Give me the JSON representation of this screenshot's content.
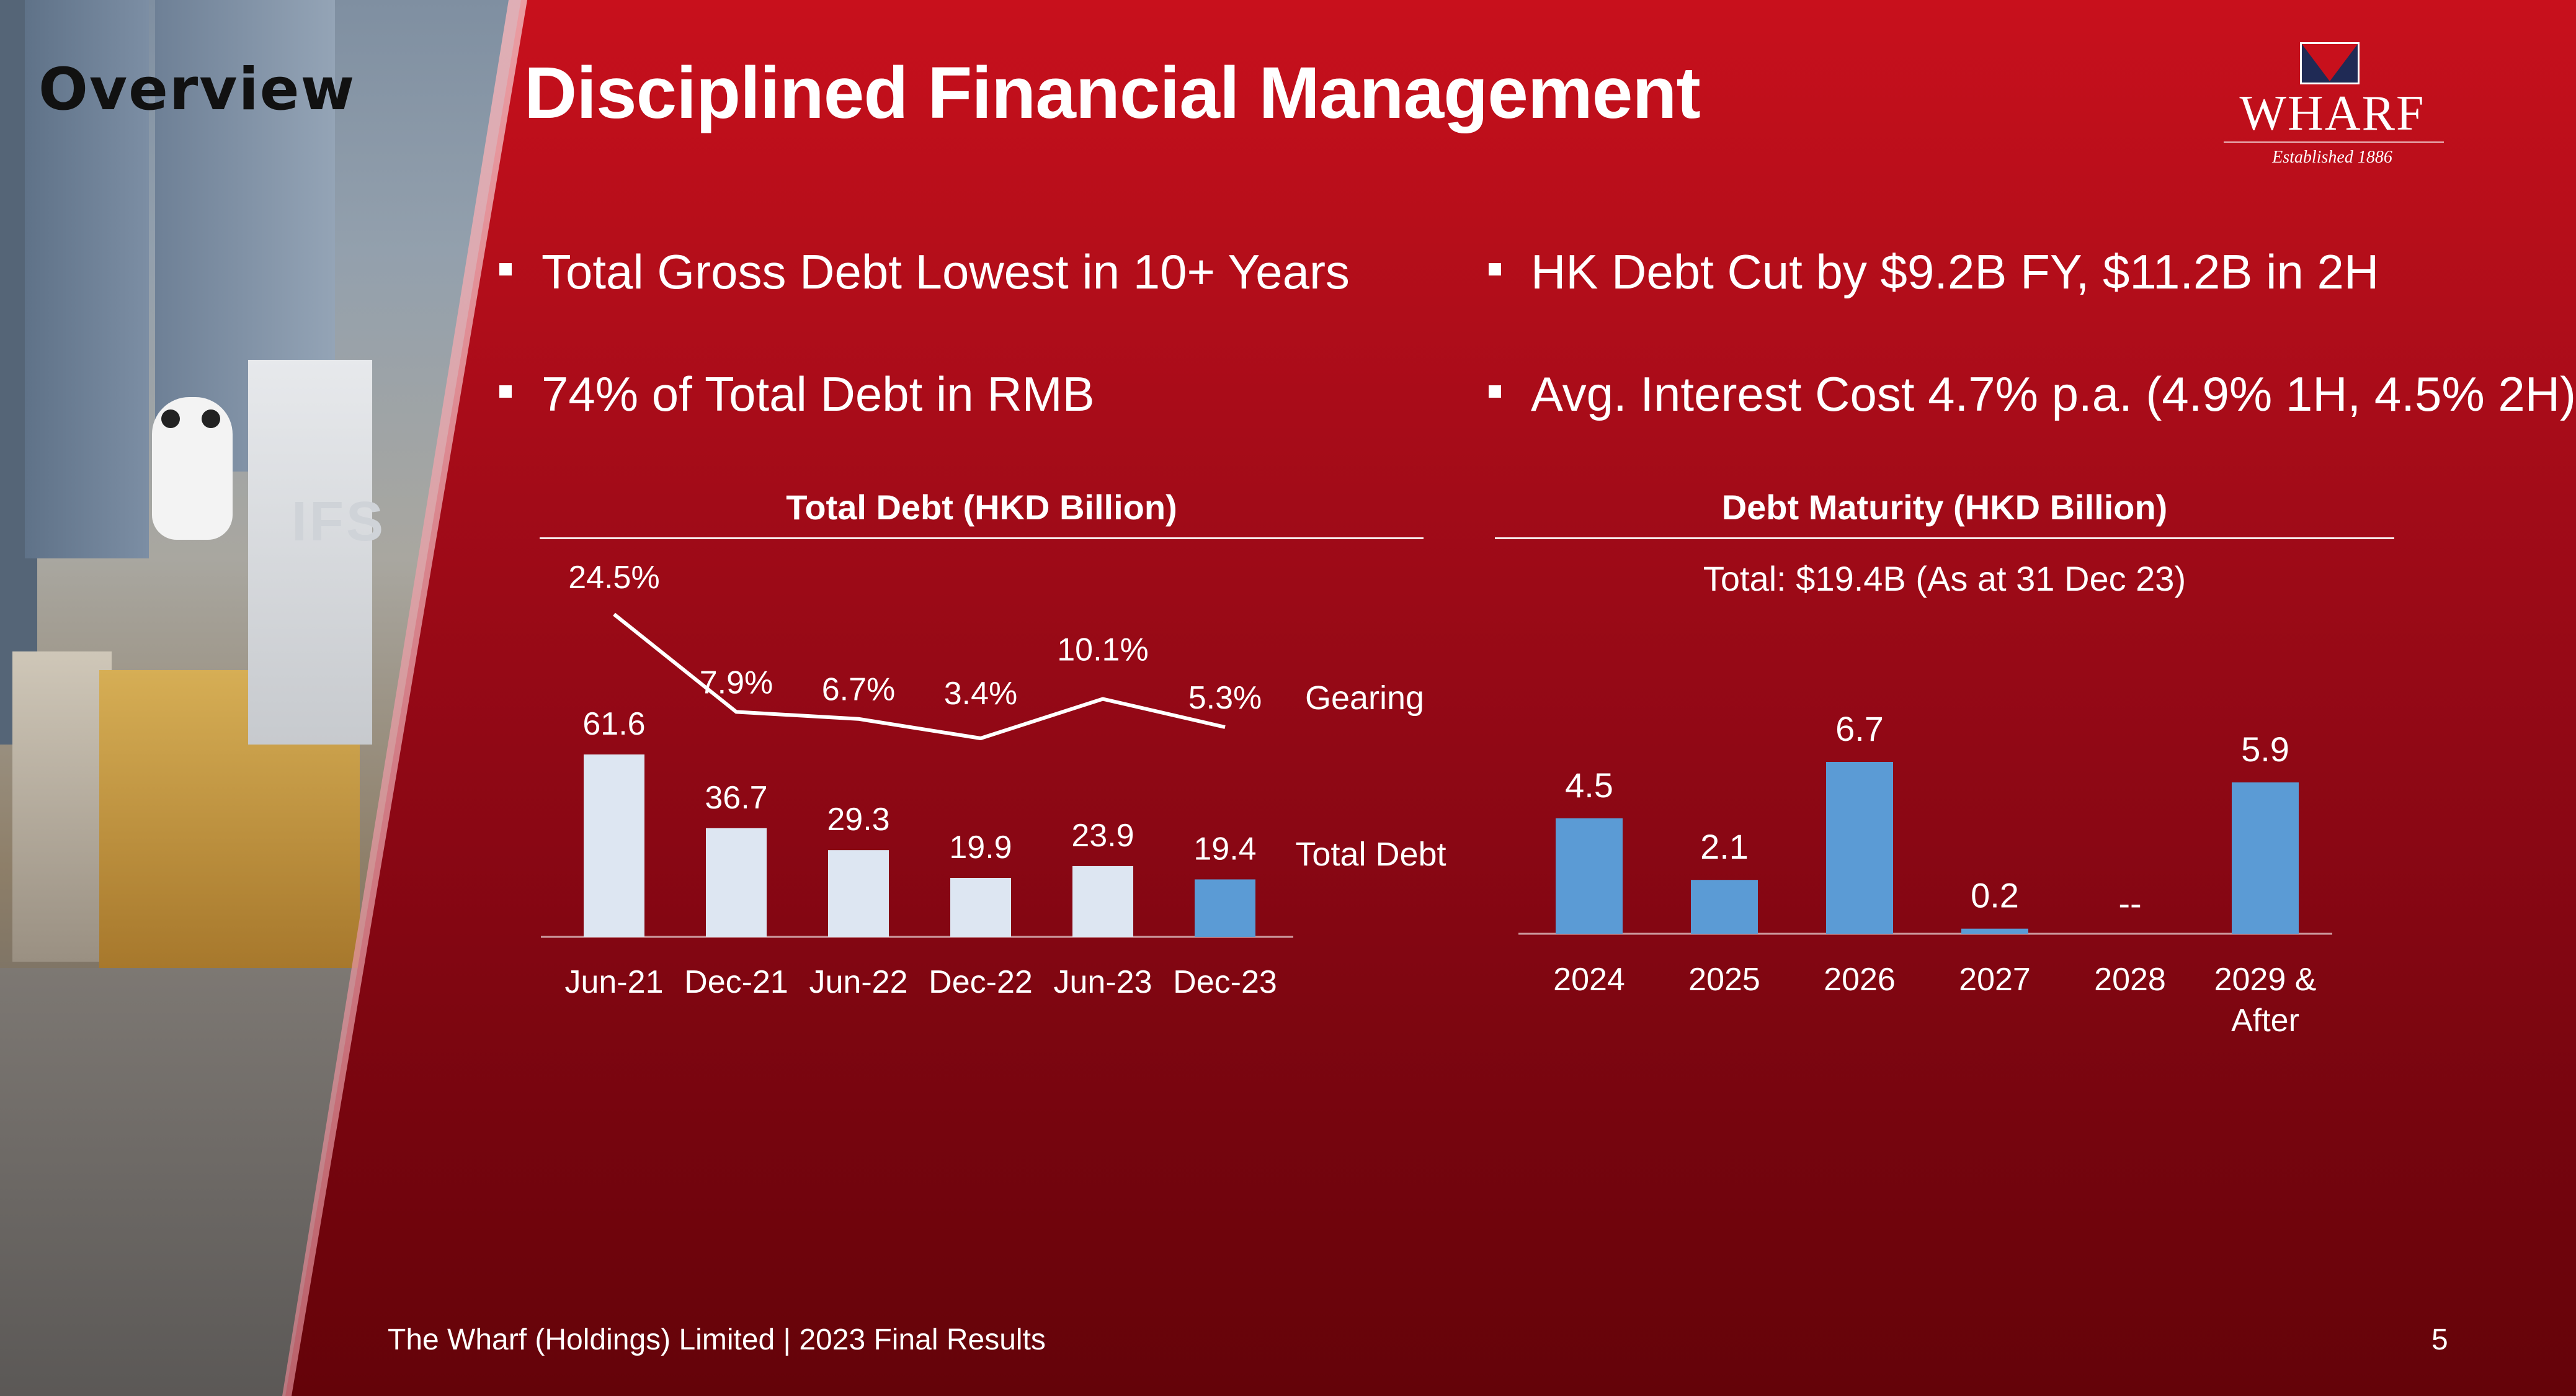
{
  "section_label": "Overview",
  "title": "Disciplined Financial Management",
  "logo": {
    "wordmark": "WHARF",
    "established": "Established 1886"
  },
  "bullets_left": [
    "Total Gross Debt Lowest in 10+ Years",
    "74% of Total Debt in RMB"
  ],
  "bullets_right": [
    "HK Debt Cut by $9.2B FY, $11.2B in 2H",
    "Avg. Interest Cost 4.7% p.a. (4.9% 1H, 4.5% 2H)"
  ],
  "colors": {
    "bar_light": "#dde6f2",
    "bar_highlight": "#5b9bd5",
    "line": "#ffffff"
  },
  "chart_data": [
    {
      "type": "bar",
      "title": "Total Debt (HKD Billion)",
      "categories": [
        "Jun-21",
        "Dec-21",
        "Jun-22",
        "Dec-22",
        "Jun-23",
        "Dec-23"
      ],
      "series": [
        {
          "name": "Total Debt",
          "values": [
            61.6,
            36.7,
            29.3,
            19.9,
            23.9,
            19.4
          ],
          "value_labels": [
            "61.6",
            "36.7",
            "29.3",
            "19.9",
            "23.9",
            "19.4"
          ]
        },
        {
          "name": "Gearing",
          "type": "line",
          "values": [
            24.5,
            7.9,
            6.7,
            3.4,
            10.1,
            5.3
          ],
          "value_labels": [
            "24.5%",
            "7.9%",
            "6.7%",
            "3.4%",
            "10.1%",
            "5.3%"
          ]
        }
      ],
      "highlight_index": 5,
      "legend_placement": "right"
    },
    {
      "type": "bar",
      "title": "Debt Maturity (HKD Billion)",
      "subtitle": "Total: $19.4B (As at 31 Dec 23)",
      "categories": [
        [
          "2024"
        ],
        [
          "2025"
        ],
        [
          "2026"
        ],
        [
          "2027"
        ],
        [
          "2028"
        ],
        [
          "2029 &",
          "After"
        ]
      ],
      "values": [
        4.5,
        2.1,
        6.7,
        0.2,
        null,
        5.9
      ],
      "value_labels": [
        "4.5",
        "2.1",
        "6.7",
        "0.2",
        "--",
        "5.9"
      ]
    }
  ],
  "footer": "The Wharf (Holdings) Limited | 2023 Final Results",
  "page_number": "5"
}
